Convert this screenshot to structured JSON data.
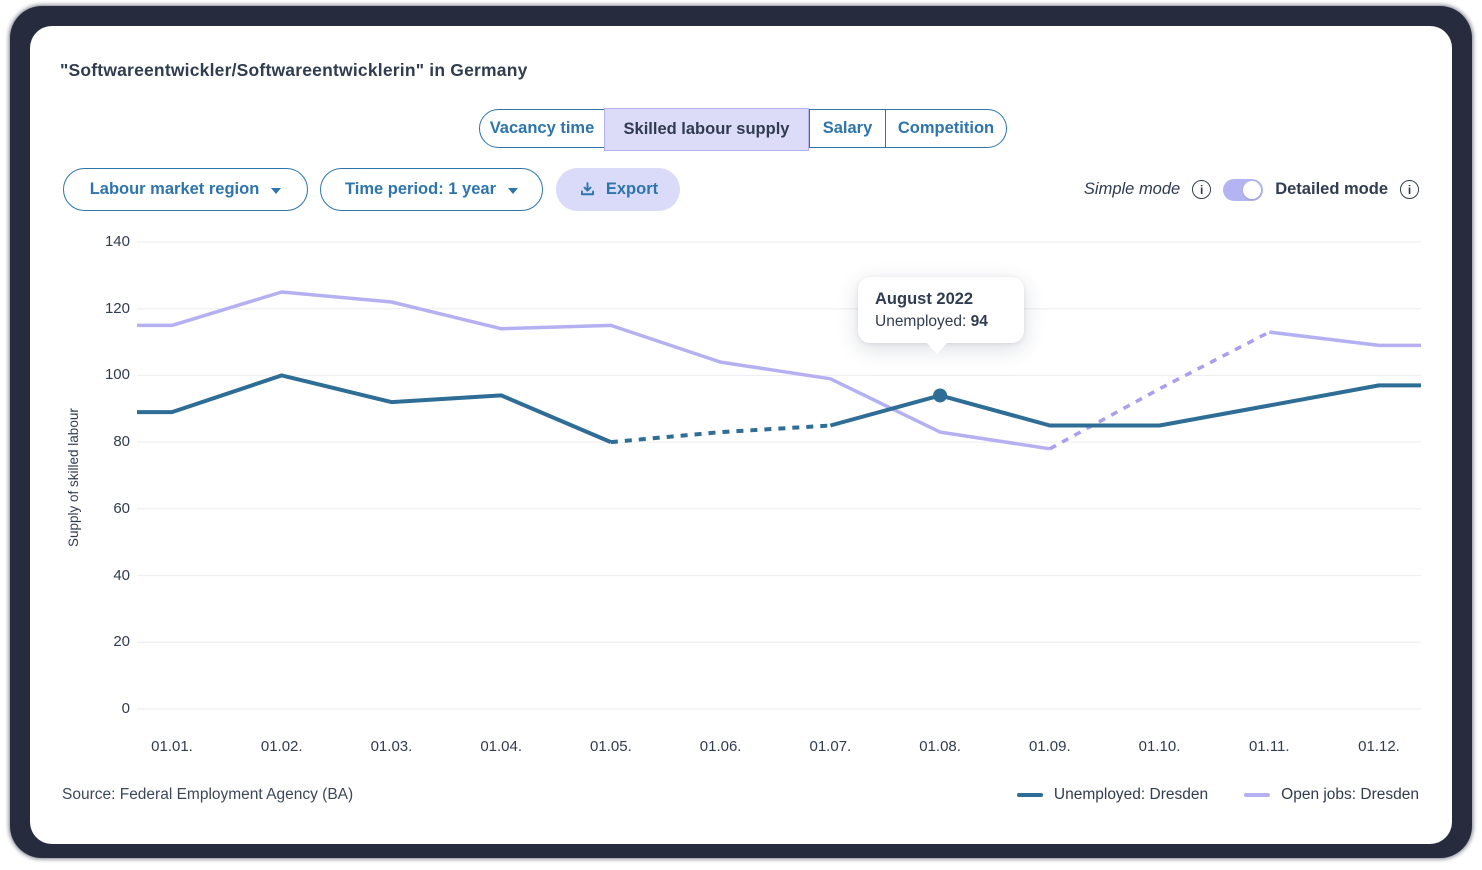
{
  "colors": {
    "accent_blue": "#2e74ad",
    "line_blue": "#2e6d96",
    "line_purple": "#b5b0f1",
    "line_purple_dash": "#a99fec",
    "lavender_bg": "#d9dbf8",
    "selected_tab_bg": "#dddcf8",
    "selected_tab_border": "#b3b1ef",
    "toggle_bg": "#b4b4f2",
    "grid": "#efeff1",
    "dark_text": "#303c4f",
    "frame_bg": "#262c3d"
  },
  "header": {
    "title": "\"Softwareentwickler/Softwareentwicklerin\" in Germany"
  },
  "tabs": [
    {
      "label": "Vacancy time",
      "selected": false
    },
    {
      "label": "Skilled labour supply",
      "selected": true
    },
    {
      "label": "Salary",
      "selected": false
    },
    {
      "label": "Competition",
      "selected": false
    }
  ],
  "controls": {
    "region_dropdown_label": "Labour market region",
    "time_dropdown_label": "Time period: 1 year",
    "export_label": "Export"
  },
  "mode_toggle": {
    "simple_label": "Simple mode",
    "detailed_label": "Detailed mode",
    "state": "detailed"
  },
  "icons": {
    "export": "download-icon",
    "info": "info-icon",
    "dropdown": "chevron-down-icon"
  },
  "tooltip": {
    "title": "August 2022",
    "series_label": "Unemployed:",
    "value": "94"
  },
  "chart_data": {
    "type": "line",
    "title": "",
    "ylabel": "Supply of skilled labour",
    "xlabel": "",
    "categories": [
      "01.01.",
      "01.02.",
      "01.03.",
      "01.04.",
      "01.05.",
      "01.06.",
      "01.07.",
      "01.08.",
      "01.09.",
      "01.10.",
      "01.11.",
      "01.12."
    ],
    "ylim": [
      0,
      140
    ],
    "yticks": [
      0,
      20,
      40,
      60,
      80,
      100,
      120,
      140
    ],
    "grid": true,
    "legend_position": "bottom-right",
    "series": [
      {
        "name": "Open jobs: Dresden",
        "color": "#b5b0f1",
        "dash_color": "#a99fec",
        "values": [
          115,
          125,
          122,
          114,
          115,
          104,
          99,
          83,
          78,
          96,
          113,
          109
        ],
        "dashed_segments": [
          [
            8,
            10
          ]
        ]
      },
      {
        "name": "Unemployed: Dresden",
        "color": "#2e6d96",
        "values": [
          89,
          100,
          92,
          94,
          80,
          83,
          85,
          94,
          85,
          85,
          91,
          97
        ],
        "dashed_segments": [
          [
            4,
            6
          ]
        ],
        "highlight_index": 7,
        "highlight_value": 94
      }
    ],
    "source": "Source: Federal Employment Agency (BA)"
  }
}
